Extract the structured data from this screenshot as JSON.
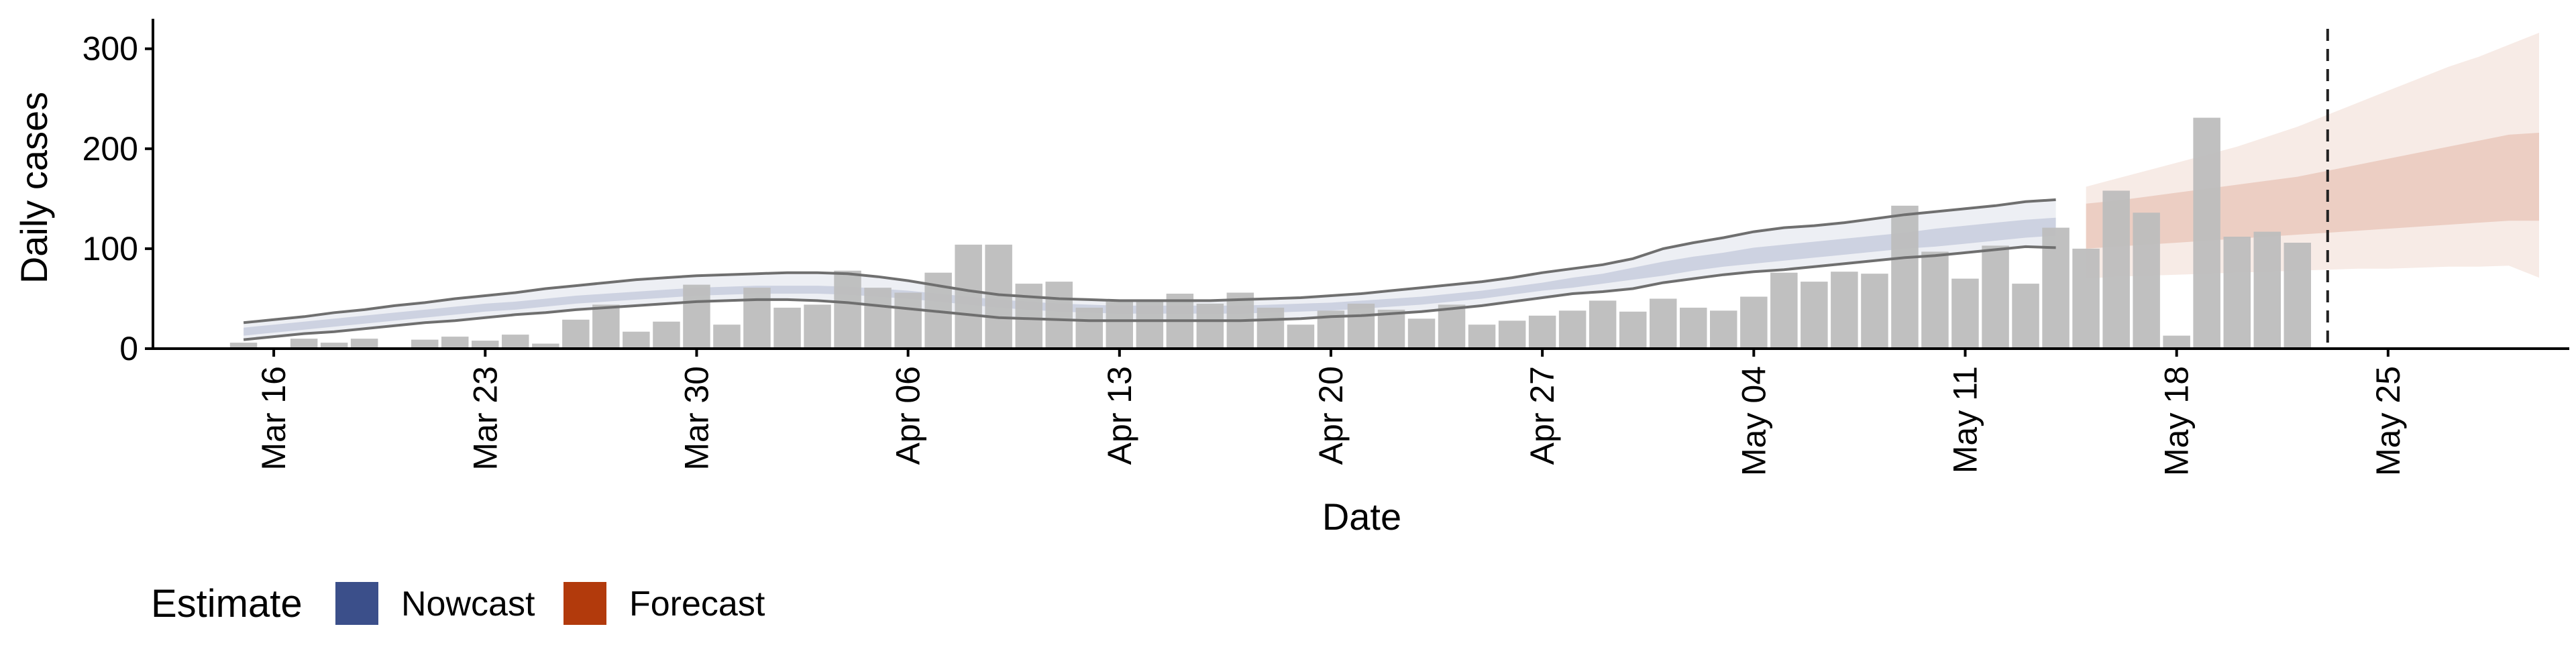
{
  "colors": {
    "nowcast": "#3b4f8a",
    "forecast": "#b23a0c",
    "bars": "#bdbdbd",
    "ci_line": "#6f6f6f"
  },
  "legend": {
    "title": "Estimate",
    "items": [
      {
        "label": "Nowcast",
        "color": "#3b4f8a"
      },
      {
        "label": "Forecast",
        "color": "#b23a0c"
      }
    ]
  },
  "chart_data": {
    "type": "bar",
    "xlabel": "Date",
    "ylabel": "Daily cases",
    "ylim": [
      0,
      330
    ],
    "yticks": [
      0,
      100,
      200,
      300
    ],
    "xlim": [
      "2020-03-12",
      "2020-05-31"
    ],
    "xticks": [
      {
        "date": "2020-03-16",
        "label": "Mar 16"
      },
      {
        "date": "2020-03-23",
        "label": "Mar 23"
      },
      {
        "date": "2020-03-30",
        "label": "Mar 30"
      },
      {
        "date": "2020-04-06",
        "label": "Apr 06"
      },
      {
        "date": "2020-04-13",
        "label": "Apr 13"
      },
      {
        "date": "2020-04-20",
        "label": "Apr 20"
      },
      {
        "date": "2020-04-27",
        "label": "Apr 27"
      },
      {
        "date": "2020-05-04",
        "label": "May 04"
      },
      {
        "date": "2020-05-11",
        "label": "May 11"
      },
      {
        "date": "2020-05-18",
        "label": "May 18"
      },
      {
        "date": "2020-05-25",
        "label": "May 25"
      }
    ],
    "grid": false,
    "vline_date": "2020-05-23",
    "bars_start_date": "2020-03-15",
    "bars": [
      6,
      0,
      10,
      6,
      10,
      0,
      9,
      12,
      8,
      14,
      5,
      29,
      44,
      17,
      27,
      64,
      24,
      61,
      41,
      44,
      78,
      61,
      56,
      76,
      104,
      104,
      65,
      67,
      41,
      47,
      49,
      55,
      45,
      56,
      41,
      24,
      38,
      45,
      39,
      30,
      44,
      24,
      28,
      33,
      38,
      48,
      37,
      50,
      41,
      38,
      52,
      76,
      67,
      77,
      75,
      143,
      97,
      70,
      103,
      65,
      121,
      100,
      158,
      136,
      13,
      231,
      112,
      117,
      106
    ],
    "nowcast": {
      "start_date": "2020-03-15",
      "median": [
        17,
        20,
        23,
        26,
        29,
        32,
        35,
        38,
        41,
        43,
        46,
        49,
        51,
        53,
        55,
        57,
        58,
        59,
        59,
        59,
        58,
        56,
        54,
        51,
        48,
        45,
        43,
        41,
        40,
        39,
        39,
        39,
        39,
        39,
        40,
        41,
        42,
        44,
        46,
        48,
        51,
        54,
        58,
        62,
        66,
        70,
        75,
        80,
        85,
        89,
        93,
        96,
        99,
        102,
        105,
        108,
        111,
        114,
        117,
        120,
        122
      ],
      "inner_lower": [
        13,
        16,
        19,
        22,
        25,
        28,
        31,
        34,
        37,
        39,
        42,
        45,
        47,
        49,
        51,
        53,
        54,
        55,
        55,
        55,
        54,
        52,
        50,
        47,
        44,
        41,
        39,
        37,
        36,
        35,
        35,
        35,
        35,
        35,
        36,
        37,
        38,
        40,
        42,
        44,
        47,
        50,
        54,
        58,
        61,
        65,
        69,
        73,
        78,
        82,
        85,
        88,
        91,
        94,
        97,
        100,
        102,
        105,
        108,
        111,
        113
      ],
      "inner_upper": [
        21,
        24,
        27,
        30,
        33,
        36,
        39,
        42,
        45,
        47,
        50,
        53,
        55,
        57,
        59,
        61,
        62,
        63,
        63,
        63,
        62,
        60,
        58,
        55,
        52,
        49,
        47,
        45,
        44,
        43,
        43,
        43,
        43,
        43,
        44,
        45,
        46,
        48,
        50,
        52,
        55,
        58,
        62,
        66,
        71,
        75,
        81,
        87,
        92,
        96,
        101,
        104,
        107,
        110,
        113,
        116,
        120,
        123,
        126,
        129,
        131
      ],
      "lower": [
        9,
        12,
        15,
        17,
        20,
        23,
        26,
        28,
        31,
        34,
        36,
        39,
        41,
        43,
        45,
        47,
        48,
        49,
        49,
        48,
        46,
        43,
        40,
        37,
        34,
        31,
        30,
        29,
        28,
        28,
        28,
        28,
        28,
        28,
        29,
        30,
        32,
        33,
        35,
        37,
        40,
        43,
        47,
        51,
        55,
        57,
        60,
        66,
        70,
        74,
        77,
        79,
        82,
        85,
        88,
        91,
        93,
        96,
        99,
        102,
        101
      ],
      "upper": [
        26,
        29,
        32,
        36,
        39,
        43,
        46,
        50,
        53,
        56,
        60,
        63,
        66,
        69,
        71,
        73,
        74,
        75,
        76,
        76,
        75,
        72,
        68,
        63,
        58,
        54,
        52,
        50,
        49,
        48,
        48,
        48,
        48,
        49,
        50,
        51,
        53,
        55,
        58,
        61,
        64,
        67,
        71,
        76,
        80,
        84,
        90,
        100,
        106,
        111,
        117,
        121,
        123,
        126,
        130,
        134,
        137,
        140,
        143,
        147,
        149
      ]
    },
    "forecast": {
      "start_date": "2020-05-15",
      "median": [
        120,
        123,
        126,
        128,
        131,
        134,
        137,
        141,
        145,
        149,
        153,
        158,
        162,
        167,
        172,
        176
      ],
      "inner_lower": [
        100,
        102,
        104,
        106,
        108,
        110,
        112,
        114,
        116,
        118,
        120,
        122,
        124,
        126,
        128,
        128
      ],
      "inner_upper": [
        145,
        148,
        152,
        156,
        160,
        164,
        168,
        172,
        178,
        184,
        190,
        196,
        202,
        208,
        214,
        216
      ],
      "lower": [
        70,
        72,
        73,
        74,
        75,
        76,
        77,
        78,
        79,
        80,
        80,
        81,
        82,
        82,
        83,
        71
      ],
      "upper": [
        162,
        170,
        178,
        186,
        194,
        202,
        212,
        222,
        234,
        246,
        258,
        270,
        282,
        292,
        304,
        316
      ]
    }
  }
}
